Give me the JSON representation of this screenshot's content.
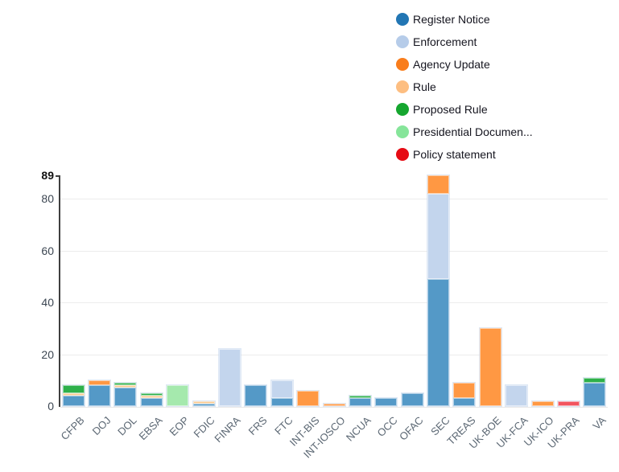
{
  "chart_data": {
    "type": "bar",
    "stacked": true,
    "title": "",
    "xlabel": "",
    "ylabel": "",
    "grid": true,
    "legend_position": "top-right",
    "ylim": [
      0,
      89
    ],
    "yticks": [
      0,
      20,
      40,
      60,
      80
    ],
    "ymax_label": "89",
    "categories": [
      "CFPB",
      "DOJ",
      "DOL",
      "EBSA",
      "EOP",
      "FDIC",
      "FINRA",
      "FRS",
      "FTC",
      "INT-BIS",
      "INT-IOSCO",
      "NCUA",
      "OCC",
      "OFAC",
      "SEC",
      "TREAS",
      "UK-BOE",
      "UK-FCA",
      "UK-ICO",
      "UK-PRA",
      "VA"
    ],
    "series": [
      {
        "name": "Register Notice",
        "legend_color": "#2276b4",
        "bar_color": "#5499c7",
        "values": [
          4,
          8,
          7,
          3,
          0,
          1,
          0,
          8,
          3,
          0,
          0,
          3,
          3,
          5,
          49,
          3,
          0,
          0,
          0,
          0,
          9
        ]
      },
      {
        "name": "Enforcement",
        "legend_color": "#b6cce9",
        "bar_color": "#c3d5ed",
        "values": [
          0,
          0,
          0,
          0,
          0,
          0,
          22,
          0,
          7,
          0,
          0,
          0,
          0,
          0,
          33,
          0,
          0,
          8,
          0,
          0,
          0
        ]
      },
      {
        "name": "Agency Update",
        "legend_color": "#f97d1c",
        "bar_color": "#ff9843",
        "values": [
          0,
          2,
          0,
          0,
          0,
          0,
          0,
          0,
          0,
          6,
          1,
          0,
          0,
          0,
          7,
          6,
          30,
          0,
          2,
          0,
          0
        ]
      },
      {
        "name": "Rule",
        "legend_color": "#fdbe81",
        "bar_color": "#fac98f",
        "values": [
          1,
          0,
          1,
          1,
          0,
          1,
          0,
          0,
          0,
          0,
          0,
          0,
          0,
          0,
          0,
          0,
          0,
          0,
          0,
          0,
          0
        ]
      },
      {
        "name": "Proposed Rule",
        "legend_color": "#15a62f",
        "bar_color": "#2eb04a",
        "values": [
          3,
          0,
          1,
          1,
          0,
          0,
          0,
          0,
          0,
          0,
          0,
          1,
          0,
          0,
          0,
          0,
          0,
          0,
          0,
          0,
          2
        ]
      },
      {
        "name": "Presidential Documen...",
        "legend_color": "#86e59a",
        "bar_color": "#a5e9ad",
        "values": [
          0,
          0,
          0,
          0,
          8,
          0,
          0,
          0,
          0,
          0,
          0,
          0,
          0,
          0,
          0,
          0,
          0,
          0,
          0,
          0,
          0
        ]
      },
      {
        "name": "Policy statement",
        "legend_color": "#e60b14",
        "bar_color": "#f2545f",
        "values": [
          0,
          0,
          0,
          0,
          0,
          0,
          0,
          0,
          0,
          0,
          0,
          0,
          0,
          0,
          0,
          0,
          0,
          0,
          0,
          2,
          0
        ]
      }
    ]
  }
}
